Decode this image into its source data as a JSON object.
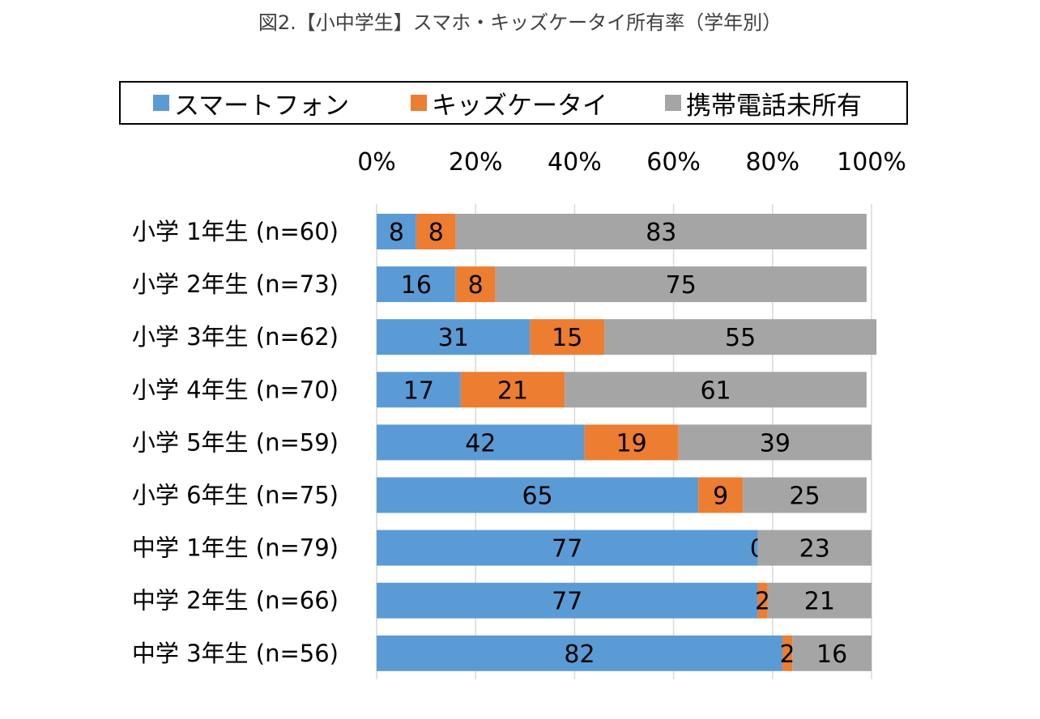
{
  "title": "図2.【小中学生】スマホ・キッズケータイ所有率（学年別）",
  "chart_data": {
    "type": "bar",
    "orientation": "horizontal",
    "stacked": true,
    "categories": [
      "小学 1年生 (n=60)",
      "小学 2年生 (n=73)",
      "小学 3年生 (n=62)",
      "小学 4年生 (n=70)",
      "小学 5年生 (n=59)",
      "小学 6年生 (n=75)",
      "中学 1年生 (n=79)",
      "中学 2年生 (n=66)",
      "中学 3年生 (n=56)"
    ],
    "series": [
      {
        "name": "スマートフォン",
        "color": "#5b9bd5",
        "values": [
          8,
          16,
          31,
          17,
          42,
          65,
          77,
          77,
          82
        ]
      },
      {
        "name": "キッズケータイ",
        "color": "#ed7d31",
        "values": [
          8,
          8,
          15,
          21,
          19,
          9,
          0,
          2,
          2
        ]
      },
      {
        "name": "携帯電話未所有",
        "color": "#a5a5a5",
        "values": [
          83,
          75,
          55,
          61,
          39,
          25,
          23,
          21,
          16
        ]
      }
    ],
    "x_ticks": [
      "0%",
      "20%",
      "40%",
      "60%",
      "80%",
      "100%"
    ],
    "xlim": [
      0,
      100
    ],
    "legend_position": "top",
    "grid": true
  }
}
